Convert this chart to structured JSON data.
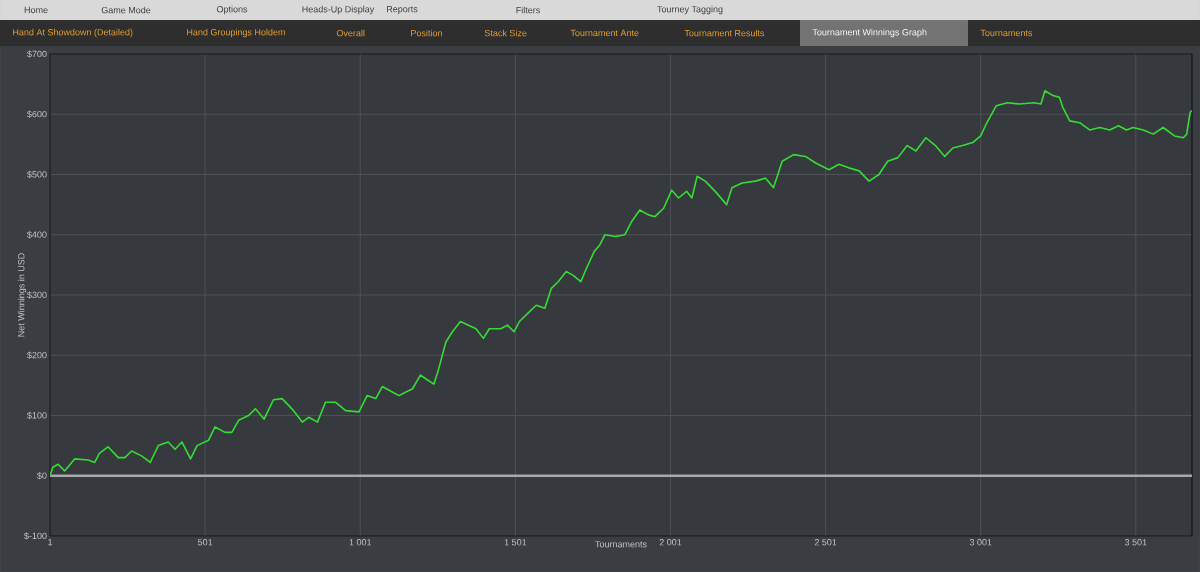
{
  "chart_data": {
    "type": "line",
    "xlabel": "Tournaments",
    "ylabel": "Net Winnings in USD",
    "color": "#33dd33",
    "x": [
      1,
      10,
      27,
      48,
      81,
      124,
      145,
      160,
      188,
      221,
      242,
      264,
      296,
      324,
      350,
      382,
      404,
      426,
      454,
      475,
      512,
      533,
      565,
      587,
      609,
      641,
      663,
      691,
      721,
      749,
      781,
      814,
      835,
      863,
      889,
      921,
      954,
      997,
      1023,
      1051,
      1072,
      1104,
      1126,
      1148,
      1169,
      1195,
      1212,
      1238,
      1251,
      1277,
      1298,
      1324,
      1374,
      1398,
      1417,
      1454,
      1475,
      1497,
      1514,
      1546,
      1568,
      1596,
      1617,
      1639,
      1665,
      1686,
      1712,
      1730,
      1755,
      1773,
      1790,
      1822,
      1854,
      1876,
      1902,
      1930,
      1951,
      1979,
      2005,
      2027,
      2053,
      2070,
      2087,
      2113,
      2145,
      2182,
      2199,
      2232,
      2275,
      2307,
      2333,
      2361,
      2398,
      2436,
      2469,
      2512,
      2544,
      2576,
      2609,
      2641,
      2673,
      2701,
      2734,
      2764,
      2792,
      2824,
      2857,
      2885,
      2911,
      2943,
      2975,
      3001,
      3018,
      3051,
      3087,
      3126,
      3173,
      3195,
      3208,
      3234,
      3255,
      3266,
      3288,
      3320,
      3352,
      3385,
      3417,
      3445,
      3471,
      3492,
      3525,
      3557,
      3589,
      3626,
      3654,
      3665,
      3676,
      3682
    ],
    "values": [
      0,
      14,
      19,
      8,
      28,
      26,
      22,
      37,
      48,
      30,
      30,
      41,
      33,
      22,
      50,
      56,
      44,
      56,
      28,
      50,
      59,
      81,
      72,
      72,
      92,
      100,
      111,
      94,
      126,
      128,
      111,
      89,
      97,
      89,
      122,
      122,
      108,
      106,
      133,
      128,
      148,
      139,
      133,
      139,
      144,
      167,
      161,
      152,
      172,
      222,
      239,
      256,
      244,
      228,
      244,
      244,
      250,
      239,
      256,
      272,
      283,
      278,
      311,
      322,
      339,
      333,
      322,
      344,
      372,
      383,
      400,
      397,
      400,
      422,
      441,
      433,
      430,
      444,
      474,
      461,
      472,
      461,
      497,
      489,
      472,
      450,
      478,
      486,
      489,
      494,
      478,
      522,
      533,
      530,
      519,
      508,
      517,
      511,
      506,
      489,
      500,
      522,
      528,
      548,
      539,
      561,
      547,
      530,
      544,
      548,
      553,
      564,
      583,
      614,
      619,
      617,
      619,
      617,
      639,
      631,
      628,
      611,
      589,
      586,
      574,
      578,
      574,
      581,
      574,
      578,
      574,
      567,
      578,
      564,
      561,
      567,
      603,
      606
    ],
    "xlim": [
      1,
      3682
    ],
    "ylim": [
      -100,
      700
    ],
    "xticks": [
      1,
      501,
      {
        "value": 1001,
        "label": "1 001"
      },
      {
        "value": 1501,
        "label": "1 501"
      },
      {
        "value": 2001,
        "label": "2 001"
      },
      {
        "value": 2501,
        "label": "2 501"
      },
      {
        "value": 3001,
        "label": "3 001"
      },
      {
        "value": 3501,
        "label": "3 501"
      }
    ],
    "yticks": [
      {
        "value": -100,
        "label": "$-100"
      },
      {
        "value": 0,
        "label": "$0"
      },
      {
        "value": 100,
        "label": "$100"
      },
      {
        "value": 200,
        "label": "$200"
      },
      {
        "value": 300,
        "label": "$300"
      },
      {
        "value": 400,
        "label": "$400"
      },
      {
        "value": 500,
        "label": "$500"
      },
      {
        "value": 600,
        "label": "$600"
      },
      {
        "value": 700,
        "label": "$700"
      }
    ],
    "grid": true,
    "ref_lines": [
      {
        "axis": "y",
        "value": 0,
        "color": "#a8a8a8"
      }
    ],
    "annotations": [
      "Home",
      "Game Mode",
      "Options",
      "Heads-Up Display",
      "Reports",
      "Filters",
      "Tourney Tagging",
      "Hand At Showdown (Detailed)",
      "Hand Groupings Holdem",
      "Overall",
      "Position",
      "Stack Size",
      "Tournament Ante",
      "Tournament Results",
      "Tournament Winnings Graph",
      "Tournaments"
    ]
  }
}
